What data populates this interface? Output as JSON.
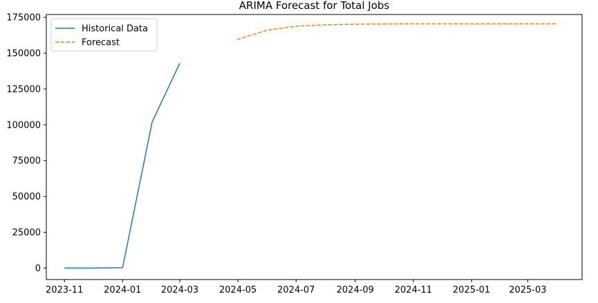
{
  "chart_data": {
    "type": "line",
    "title": "ARIMA Forecast for Total Jobs",
    "xlabel": "",
    "ylabel": "",
    "xlim": [
      "2023-10-13",
      "2025-04-27"
    ],
    "ylim": [
      -8000,
      177000
    ],
    "x_ticks": [
      "2023-11",
      "2024-01",
      "2024-03",
      "2024-05",
      "2024-07",
      "2024-09",
      "2024-11",
      "2025-01",
      "2025-03"
    ],
    "y_ticks": [
      0,
      25000,
      50000,
      75000,
      100000,
      125000,
      150000,
      175000
    ],
    "grid": false,
    "legend": "top-left",
    "series": [
      {
        "name": "Historical Data",
        "color": "#1f77b4",
        "style": "solid",
        "x": [
          "2023-11-01",
          "2023-12-01",
          "2024-01-01",
          "2024-02-01",
          "2024-03-01"
        ],
        "y": [
          0,
          0,
          300,
          102000,
          143000
        ]
      },
      {
        "name": "Forecast",
        "color": "#ff7f0e",
        "style": "dashed",
        "x": [
          "2024-04-30",
          "2024-05-31",
          "2024-06-30",
          "2024-07-31",
          "2024-08-31",
          "2024-09-30",
          "2024-10-31",
          "2024-11-30",
          "2024-12-31",
          "2025-01-31",
          "2025-02-28",
          "2025-03-31"
        ],
        "y": [
          159500,
          166000,
          168800,
          169800,
          170200,
          170400,
          170500,
          170500,
          170500,
          170500,
          170500,
          170500
        ]
      }
    ]
  }
}
